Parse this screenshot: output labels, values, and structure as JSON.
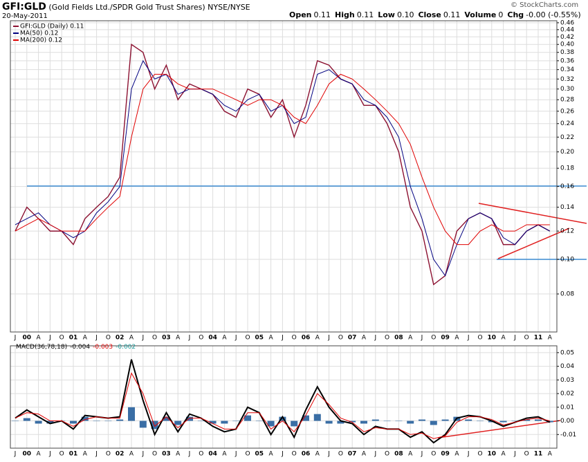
{
  "watermark": "© StockCharts.com",
  "chart_data": [
    {
      "type": "line",
      "title": "GFI:GLD",
      "subtitle": "(Gold Fields Ltd./SPDR Gold Trust Shares)",
      "exchange": "NYSE/NYSE",
      "date": "20-May-2011",
      "quote": [
        {
          "label": "Open",
          "value": "0.11"
        },
        {
          "label": "High",
          "value": "0.11"
        },
        {
          "label": "Low",
          "value": "0.10"
        },
        {
          "label": "Close",
          "value": "0.11"
        },
        {
          "label": "Volume",
          "value": "0"
        },
        {
          "label": "Chg",
          "value": "-0.00 (-0.55%)"
        }
      ],
      "categories": [
        "J",
        "00",
        "A",
        "J",
        "O",
        "01",
        "A",
        "J",
        "O",
        "02",
        "A",
        "J",
        "O",
        "03",
        "A",
        "J",
        "O",
        "04",
        "A",
        "J",
        "O",
        "05",
        "A",
        "J",
        "O",
        "06",
        "A",
        "J",
        "O",
        "07",
        "A",
        "J",
        "O",
        "08",
        "A",
        "J",
        "O",
        "09",
        "A",
        "J",
        "O",
        "10",
        "A",
        "J",
        "O",
        "11",
        "A"
      ],
      "ylog": true,
      "grid": true,
      "ylim": [
        0.0626,
        0.466
      ],
      "yticks": [
        0.08,
        {
          "value": 0.1,
          "label": "0.10"
        },
        0.12,
        0.14,
        0.16,
        0.18,
        {
          "value": 0.2,
          "label": "0.20"
        },
        0.22,
        0.24,
        0.26,
        0.28,
        {
          "value": 0.3,
          "label": "0.30"
        },
        0.32,
        0.34,
        0.36,
        0.38,
        {
          "value": 0.4,
          "label": "0.40"
        },
        0.42,
        0.44,
        0.46
      ],
      "series": [
        {
          "name": "GFI:GLD (Daily) 0.11",
          "color": "#8b1030",
          "values": [
            0.12,
            0.14,
            0.13,
            0.12,
            0.12,
            0.11,
            0.13,
            0.14,
            0.15,
            0.17,
            0.4,
            0.38,
            0.3,
            0.35,
            0.28,
            0.31,
            0.3,
            0.29,
            0.26,
            0.25,
            0.3,
            0.29,
            0.25,
            0.28,
            0.22,
            0.27,
            0.36,
            0.35,
            0.32,
            0.31,
            0.27,
            0.27,
            0.24,
            0.2,
            0.14,
            0.12,
            0.085,
            0.09,
            0.12,
            0.13,
            0.135,
            0.13,
            0.11,
            0.11,
            0.12,
            0.125,
            0.12
          ]
        },
        {
          "name": "MA(50) 0.12",
          "color": "#000080",
          "values": [
            0.125,
            0.13,
            0.135,
            0.125,
            0.12,
            0.115,
            0.12,
            0.135,
            0.145,
            0.16,
            0.3,
            0.36,
            0.32,
            0.33,
            0.29,
            0.3,
            0.3,
            0.29,
            0.27,
            0.26,
            0.28,
            0.29,
            0.26,
            0.27,
            0.24,
            0.25,
            0.33,
            0.34,
            0.32,
            0.31,
            0.28,
            0.27,
            0.25,
            0.22,
            0.16,
            0.13,
            0.1,
            0.09,
            0.11,
            0.13,
            0.135,
            0.13,
            0.115,
            0.11,
            0.12,
            0.125,
            0.12
          ]
        },
        {
          "name": "MA(200) 0.12",
          "color": "#e00000",
          "values": [
            0.12,
            0.125,
            0.13,
            0.125,
            0.12,
            0.12,
            0.12,
            0.13,
            0.14,
            0.15,
            0.22,
            0.3,
            0.33,
            0.33,
            0.31,
            0.3,
            0.3,
            0.3,
            0.29,
            0.28,
            0.27,
            0.28,
            0.28,
            0.27,
            0.25,
            0.24,
            0.27,
            0.31,
            0.33,
            0.32,
            0.3,
            0.28,
            0.26,
            0.24,
            0.21,
            0.17,
            0.14,
            0.12,
            0.11,
            0.11,
            0.12,
            0.125,
            0.12,
            0.12,
            0.125,
            0.125,
            0.125
          ]
        }
      ]
    },
    {
      "type": "macd",
      "legend_title": "MACD(36,78,18)",
      "categories": [
        "J",
        "00",
        "A",
        "J",
        "O",
        "01",
        "A",
        "J",
        "O",
        "02",
        "A",
        "J",
        "O",
        "03",
        "A",
        "J",
        "O",
        "04",
        "A",
        "J",
        "O",
        "05",
        "A",
        "J",
        "O",
        "06",
        "A",
        "J",
        "O",
        "07",
        "A",
        "J",
        "O",
        "08",
        "A",
        "J",
        "O",
        "09",
        "A",
        "J",
        "O",
        "10",
        "A",
        "J",
        "O",
        "11",
        "A"
      ],
      "grid": true,
      "ylim": [
        -0.02,
        0.055
      ],
      "yticks": [
        -0.01,
        {
          "value": 0,
          "label": "0.00"
        },
        0.01,
        0.02,
        0.03,
        0.04,
        0.05
      ],
      "series": [
        {
          "name": "-0.004",
          "color": "#000000",
          "kind": "line",
          "values": [
            0.002,
            0.008,
            0.003,
            -0.002,
            0.0,
            -0.006,
            0.004,
            0.003,
            0.002,
            0.003,
            0.045,
            0.015,
            -0.01,
            0.006,
            -0.008,
            0.005,
            0.002,
            -0.004,
            -0.008,
            -0.006,
            0.01,
            0.006,
            -0.01,
            0.003,
            -0.012,
            0.008,
            0.025,
            0.01,
            0.0,
            -0.002,
            -0.01,
            -0.004,
            -0.006,
            -0.006,
            -0.012,
            -0.008,
            -0.016,
            -0.01,
            0.002,
            0.004,
            0.003,
            0.0,
            -0.004,
            -0.001,
            0.002,
            0.003,
            -0.001
          ]
        },
        {
          "name": "-0.003",
          "color": "#e00000",
          "kind": "line",
          "values": [
            0.002,
            0.006,
            0.005,
            0.0,
            0.0,
            -0.004,
            0.001,
            0.003,
            0.002,
            0.002,
            0.035,
            0.02,
            -0.004,
            0.003,
            -0.005,
            0.002,
            0.002,
            -0.002,
            -0.006,
            -0.006,
            0.006,
            0.006,
            -0.006,
            0.0,
            -0.008,
            0.004,
            0.02,
            0.012,
            0.002,
            -0.001,
            -0.008,
            -0.005,
            -0.006,
            -0.006,
            -0.01,
            -0.009,
            -0.013,
            -0.011,
            -0.001,
            0.003,
            0.003,
            0.001,
            -0.003,
            -0.001,
            0.001,
            0.002,
            0.0
          ]
        },
        {
          "name": "-0.002",
          "color": "#3a6ea5",
          "kind": "histogram",
          "values": [
            0,
            0.002,
            -0.002,
            -0.002,
            0,
            -0.002,
            0.003,
            0,
            0,
            0.001,
            0.01,
            -0.005,
            -0.006,
            0.003,
            -0.003,
            0.003,
            0,
            -0.002,
            -0.002,
            0,
            0.004,
            0,
            -0.004,
            0.003,
            -0.004,
            0.004,
            0.005,
            -0.002,
            -0.002,
            -0.001,
            -0.002,
            0.001,
            0,
            0,
            -0.002,
            0.001,
            -0.003,
            0.001,
            0.003,
            0.001,
            0,
            -0.001,
            -0.001,
            0,
            0.001,
            0.001,
            -0.001
          ]
        }
      ]
    }
  ]
}
